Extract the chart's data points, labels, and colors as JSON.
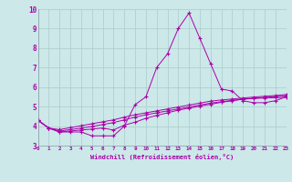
{
  "xlabel": "Windchill (Refroidissement éolien,°C)",
  "background_color": "#cce8e8",
  "line_color": "#aa00aa",
  "grid_color": "#aacccc",
  "xlim": [
    0,
    23
  ],
  "ylim": [
    3,
    10
  ],
  "xticks": [
    0,
    1,
    2,
    3,
    4,
    5,
    6,
    7,
    8,
    9,
    10,
    11,
    12,
    13,
    14,
    15,
    16,
    17,
    18,
    19,
    20,
    21,
    22,
    23
  ],
  "yticks": [
    3,
    4,
    5,
    6,
    7,
    8,
    9,
    10
  ],
  "series": [
    [
      4.3,
      3.9,
      3.7,
      3.7,
      3.7,
      3.5,
      3.5,
      3.5,
      4.0,
      5.1,
      5.5,
      7.0,
      7.7,
      9.0,
      9.8,
      8.5,
      7.2,
      5.9,
      5.8,
      5.3,
      5.2,
      5.2,
      5.3,
      5.5
    ],
    [
      4.3,
      3.9,
      3.7,
      3.75,
      3.8,
      3.85,
      3.9,
      3.8,
      4.05,
      4.2,
      4.4,
      4.55,
      4.68,
      4.82,
      4.92,
      5.02,
      5.12,
      5.22,
      5.3,
      5.38,
      5.42,
      5.44,
      5.46,
      5.48
    ],
    [
      4.3,
      3.9,
      3.75,
      3.82,
      3.9,
      3.98,
      4.08,
      4.18,
      4.32,
      4.46,
      4.58,
      4.68,
      4.78,
      4.88,
      4.98,
      5.08,
      5.18,
      5.25,
      5.32,
      5.38,
      5.43,
      5.47,
      5.51,
      5.55
    ],
    [
      4.3,
      3.9,
      3.82,
      3.92,
      4.02,
      4.12,
      4.22,
      4.32,
      4.46,
      4.58,
      4.68,
      4.78,
      4.88,
      4.98,
      5.08,
      5.18,
      5.28,
      5.34,
      5.39,
      5.44,
      5.49,
      5.53,
      5.57,
      5.62
    ]
  ]
}
